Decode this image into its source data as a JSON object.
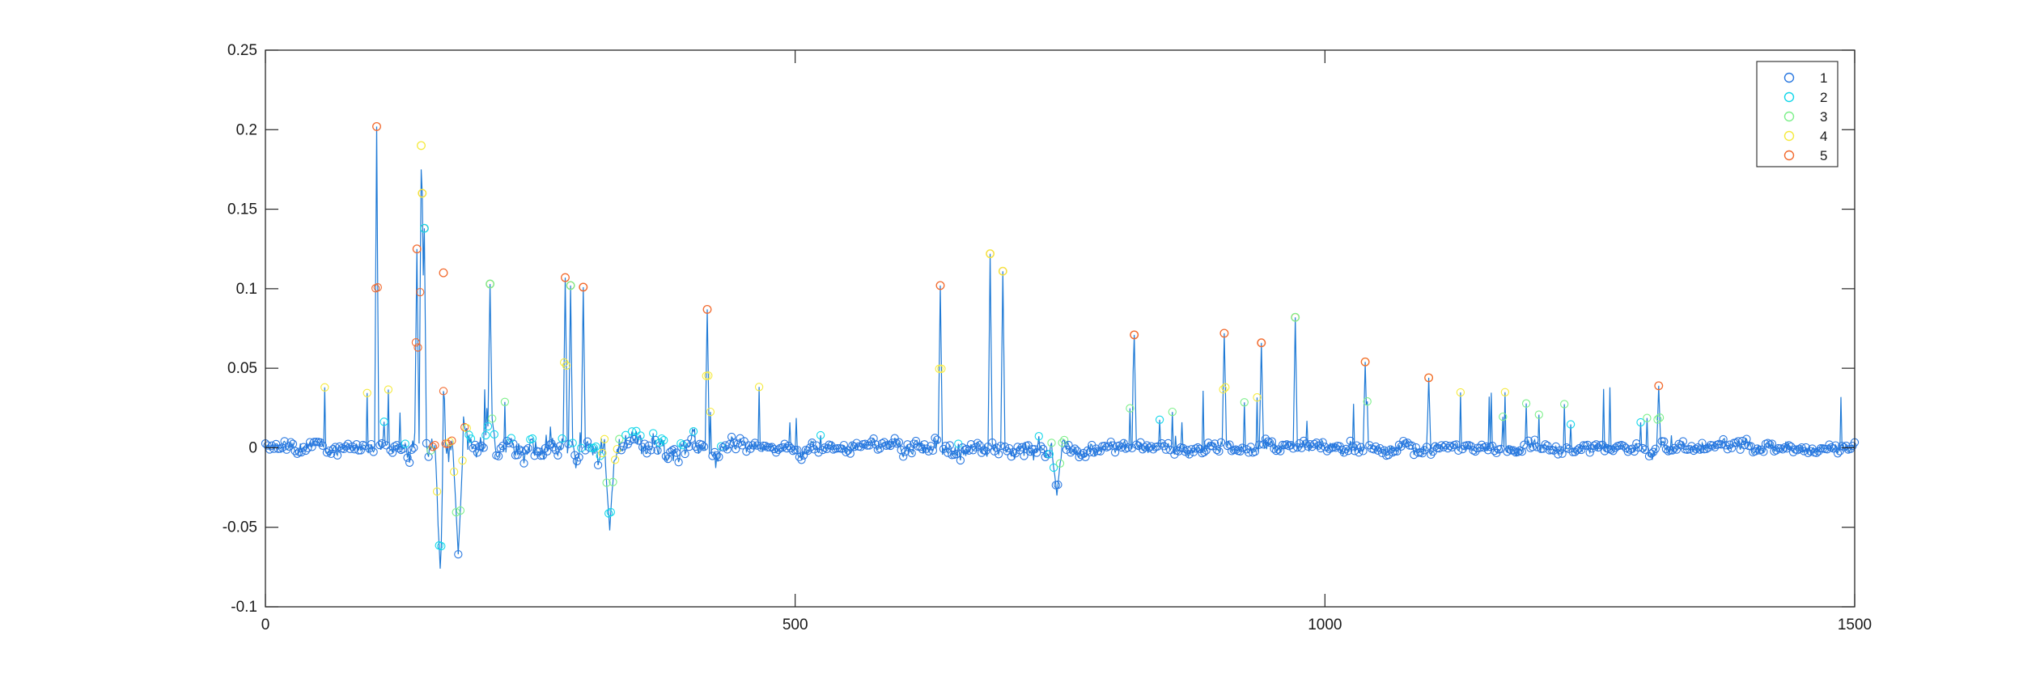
{
  "chart_data": {
    "type": "scatter",
    "title": "",
    "xlabel": "",
    "ylabel": "",
    "xlim": [
      0,
      1500
    ],
    "ylim": [
      -0.1,
      0.25
    ],
    "x_ticks": [
      0,
      500,
      1000,
      1500
    ],
    "x_tick_labels": [
      "0",
      "500",
      "1000",
      "1500"
    ],
    "y_ticks": [
      0.25,
      0.2,
      0.15,
      0.1,
      0.05,
      0,
      -0.05,
      -0.1
    ],
    "y_tick_labels": [
      "0.25",
      "0.2",
      "0.15",
      "0.1",
      "0.05",
      "0",
      "-0.05",
      "-0.1"
    ],
    "grid": false,
    "legend_position": "top-right",
    "line_color": "#1f7ad6",
    "marker": "open circle",
    "series": [
      {
        "name": "1",
        "color": "#2a78e0"
      },
      {
        "name": "2",
        "color": "#13d7ea"
      },
      {
        "name": "3",
        "color": "#7df08a"
      },
      {
        "name": "4",
        "color": "#f5ea3e"
      },
      {
        "name": "5",
        "color": "#f26a2e"
      }
    ],
    "peaks": [
      {
        "x": 105,
        "y": 0.202,
        "series": "5"
      },
      {
        "x": 147,
        "y": 0.19,
        "series": "4"
      },
      {
        "x": 148,
        "y": 0.16,
        "series": "4"
      },
      {
        "x": 143,
        "y": 0.125,
        "series": "5"
      },
      {
        "x": 150,
        "y": 0.138,
        "series": "2"
      },
      {
        "x": 168,
        "y": 0.11,
        "series": "5"
      },
      {
        "x": 212,
        "y": 0.103,
        "series": "3"
      },
      {
        "x": 283,
        "y": 0.107,
        "series": "5"
      },
      {
        "x": 288,
        "y": 0.102,
        "series": "3"
      },
      {
        "x": 300,
        "y": 0.101,
        "series": "5"
      },
      {
        "x": 417,
        "y": 0.087,
        "series": "5"
      },
      {
        "x": 637,
        "y": 0.102,
        "series": "5"
      },
      {
        "x": 684,
        "y": 0.122,
        "series": "4"
      },
      {
        "x": 696,
        "y": 0.111,
        "series": "4"
      },
      {
        "x": 820,
        "y": 0.071,
        "series": "5"
      },
      {
        "x": 905,
        "y": 0.072,
        "series": "5"
      },
      {
        "x": 940,
        "y": 0.066,
        "series": "5"
      },
      {
        "x": 972,
        "y": 0.082,
        "series": "3"
      },
      {
        "x": 1038,
        "y": 0.054,
        "series": "5"
      },
      {
        "x": 1098,
        "y": 0.044,
        "series": "5"
      },
      {
        "x": 1315,
        "y": 0.039,
        "series": "5"
      }
    ],
    "troughs": [
      {
        "x": 165,
        "y": -0.076
      },
      {
        "x": 182,
        "y": -0.067
      },
      {
        "x": 325,
        "y": -0.052
      },
      {
        "x": 747,
        "y": -0.03
      }
    ]
  }
}
